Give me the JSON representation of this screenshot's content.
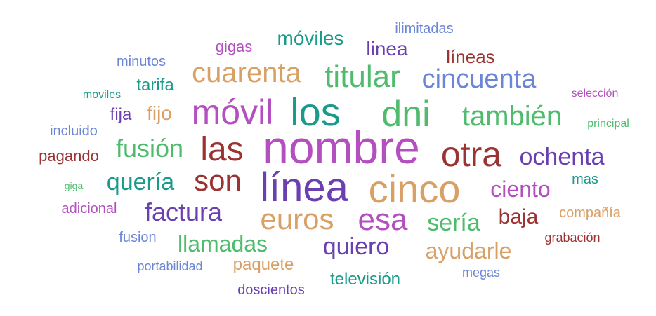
{
  "words": [
    {
      "text": "nombre",
      "color": "#b44fc0"
    },
    {
      "text": "línea",
      "color": "#6a3fb0"
    },
    {
      "text": "cinco",
      "color": "#d9a066"
    },
    {
      "text": "los",
      "color": "#1a9a8a"
    },
    {
      "text": "dni",
      "color": "#4fbb6c"
    },
    {
      "text": "móvil",
      "color": "#b44fc0"
    },
    {
      "text": "otra",
      "color": "#9b3333"
    },
    {
      "text": "las",
      "color": "#9b3333"
    },
    {
      "text": "titular",
      "color": "#4fbb6c"
    },
    {
      "text": "cuarenta",
      "color": "#d9a066"
    },
    {
      "text": "cincuenta",
      "color": "#6b86d6"
    },
    {
      "text": "también",
      "color": "#4fbb6c"
    },
    {
      "text": "euros",
      "color": "#d9a066"
    },
    {
      "text": "son",
      "color": "#9b3333"
    },
    {
      "text": "esa",
      "color": "#b44fc0"
    },
    {
      "text": "fusión",
      "color": "#4fbb6c"
    },
    {
      "text": "factura",
      "color": "#6a3fb0"
    },
    {
      "text": "ochenta",
      "color": "#6a3fb0"
    },
    {
      "text": "quería",
      "color": "#1a9a8a"
    },
    {
      "text": "ciento",
      "color": "#b44fc0"
    },
    {
      "text": "quiero",
      "color": "#6a3fb0"
    },
    {
      "text": "ayudarle",
      "color": "#d9a066"
    },
    {
      "text": "sería",
      "color": "#4fbb6c"
    },
    {
      "text": "llamadas",
      "color": "#4fbb6c"
    },
    {
      "text": "móviles",
      "color": "#1a9a8a"
    },
    {
      "text": "baja",
      "color": "#9b3333"
    },
    {
      "text": "linea",
      "color": "#6a3fb0"
    },
    {
      "text": "fijo",
      "color": "#d9a066"
    },
    {
      "text": "líneas",
      "color": "#9b3333"
    },
    {
      "text": "paquete",
      "color": "#d9a066"
    },
    {
      "text": "televisión",
      "color": "#1a9a8a"
    },
    {
      "text": "tarifa",
      "color": "#1a9a8a"
    },
    {
      "text": "fija",
      "color": "#6a3fb0"
    },
    {
      "text": "gigas",
      "color": "#b44fc0"
    },
    {
      "text": "ilimitadas",
      "color": "#6b86d6"
    },
    {
      "text": "minutos",
      "color": "#6b86d6"
    },
    {
      "text": "compañía",
      "color": "#d9a066"
    },
    {
      "text": "pagando",
      "color": "#9b3333"
    },
    {
      "text": "incluido",
      "color": "#6b86d6"
    },
    {
      "text": "adicional",
      "color": "#b44fc0"
    },
    {
      "text": "fusion",
      "color": "#6b86d6"
    },
    {
      "text": "doscientos",
      "color": "#6a3fb0"
    },
    {
      "text": "mas",
      "color": "#1a9a8a"
    },
    {
      "text": "megas",
      "color": "#6b86d6"
    },
    {
      "text": "grabación",
      "color": "#9b3333"
    },
    {
      "text": "portabilidad",
      "color": "#6b86d6"
    },
    {
      "text": "moviles",
      "color": "#1a9a8a"
    },
    {
      "text": "selección",
      "color": "#b44fc0"
    },
    {
      "text": "principal",
      "color": "#4fbb6c"
    },
    {
      "text": "giga",
      "color": "#4fbb6c"
    }
  ]
}
